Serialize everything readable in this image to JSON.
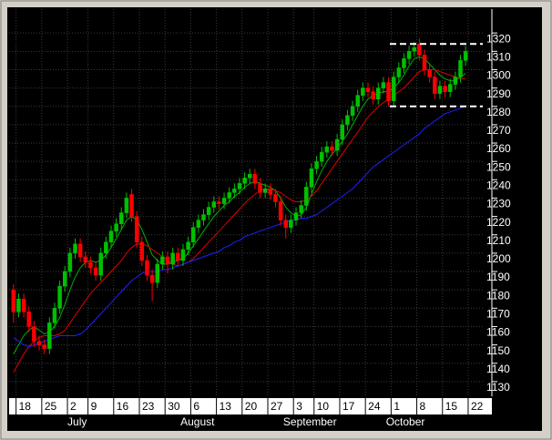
{
  "chart_data": {
    "type": "candlestick",
    "categories": [
      null,
      "18",
      null,
      null,
      null,
      null,
      "25",
      null,
      null,
      null,
      null,
      "2",
      null,
      null,
      null,
      "9",
      null,
      null,
      null,
      null,
      "16",
      null,
      null,
      null,
      null,
      "23",
      null,
      null,
      null,
      null,
      "30",
      null,
      null,
      null,
      null,
      "6",
      null,
      null,
      null,
      null,
      "13",
      null,
      null,
      null,
      null,
      "20",
      null,
      null,
      null,
      null,
      "27",
      null,
      null,
      null,
      null,
      "3",
      null,
      null,
      null,
      "10",
      null,
      null,
      null,
      null,
      "17",
      null,
      null,
      null,
      null,
      "24",
      null,
      null,
      null,
      null,
      "1",
      null,
      null,
      null,
      null,
      "8",
      null,
      null,
      null,
      null,
      "15",
      null,
      null,
      null,
      null,
      "22"
    ],
    "months": [
      null,
      null,
      null,
      null,
      null,
      null,
      null,
      null,
      null,
      null,
      null,
      "July",
      null,
      null,
      null,
      null,
      null,
      null,
      null,
      null,
      null,
      null,
      null,
      null,
      null,
      null,
      null,
      null,
      null,
      null,
      null,
      null,
      null,
      "August",
      null,
      null,
      null,
      null,
      null,
      null,
      null,
      null,
      null,
      null,
      null,
      null,
      null,
      null,
      null,
      null,
      null,
      null,
      null,
      "September",
      null,
      null,
      null,
      null,
      null,
      null,
      null,
      null,
      null,
      null,
      null,
      null,
      null,
      null,
      null,
      null,
      null,
      null,
      null,
      "October",
      null,
      null,
      null,
      null,
      null,
      null,
      null,
      null,
      null,
      null,
      null,
      null,
      null,
      null,
      null,
      null
    ],
    "open": [
      1180,
      1168,
      1175,
      1168,
      1160,
      1152,
      1150,
      1148,
      1162,
      1170,
      1182,
      1190,
      1200,
      1205,
      1198,
      1195,
      1192,
      1188,
      1200,
      1206,
      1212,
      1216,
      1222,
      1232,
      1220,
      1206,
      1196,
      1188,
      1184,
      1194,
      1198,
      1194,
      1200,
      1196,
      1202,
      1206,
      1214,
      1218,
      1221,
      1225,
      1228,
      1227,
      1230,
      1233,
      1235,
      1238,
      1241,
      1243,
      1238,
      1233,
      1235,
      1232,
      1228,
      1218,
      1214,
      1218,
      1222,
      1226,
      1236,
      1246,
      1250,
      1255,
      1258,
      1256,
      1262,
      1270,
      1275,
      1280,
      1286,
      1290,
      1288,
      1284,
      1290,
      1293,
      1283,
      1296,
      1301,
      1306,
      1310,
      1314,
      1308,
      1300,
      1296,
      1287,
      1291,
      1288,
      1292,
      1296,
      1305,
      null
    ],
    "high": [
      1183,
      1178,
      1178,
      1171,
      1163,
      1155,
      1153,
      1165,
      1173,
      1185,
      1193,
      1203,
      1208,
      1208,
      1201,
      1198,
      1195,
      1203,
      1209,
      1215,
      1219,
      1225,
      1233,
      1235,
      1223,
      1209,
      1199,
      1191,
      1197,
      1201,
      1201,
      1203,
      1203,
      1205,
      1209,
      1217,
      1221,
      1224,
      1228,
      1231,
      1231,
      1233,
      1236,
      1238,
      1241,
      1244,
      1246,
      1246,
      1241,
      1238,
      1238,
      1235,
      1231,
      1221,
      1221,
      1225,
      1229,
      1239,
      1249,
      1253,
      1258,
      1261,
      1261,
      1265,
      1273,
      1278,
      1283,
      1289,
      1293,
      1293,
      1291,
      1293,
      1296,
      1296,
      1299,
      1304,
      1309,
      1313,
      1315,
      1317,
      1311,
      1303,
      1299,
      1294,
      1294,
      1295,
      1299,
      1308,
      1313,
      null
    ],
    "low": [
      1162,
      1165,
      1165,
      1157,
      1149,
      1147,
      1145,
      1145,
      1159,
      1167,
      1179,
      1187,
      1197,
      1195,
      1192,
      1189,
      1185,
      1185,
      1197,
      1203,
      1209,
      1213,
      1219,
      1217,
      1203,
      1193,
      1185,
      1174,
      1181,
      1191,
      1189,
      1191,
      1193,
      1193,
      1199,
      1203,
      1211,
      1215,
      1218,
      1222,
      1224,
      1224,
      1227,
      1230,
      1232,
      1235,
      1238,
      1235,
      1230,
      1230,
      1229,
      1225,
      1215,
      1208,
      1211,
      1215,
      1219,
      1223,
      1233,
      1243,
      1247,
      1252,
      1253,
      1253,
      1259,
      1267,
      1272,
      1277,
      1283,
      1285,
      1281,
      1281,
      1287,
      1280,
      1280,
      1293,
      1298,
      1303,
      1307,
      1305,
      1297,
      1293,
      1284,
      1284,
      1285,
      1285,
      1289,
      1293,
      1302,
      null
    ],
    "close": [
      1168,
      1175,
      1168,
      1160,
      1152,
      1150,
      1148,
      1162,
      1170,
      1182,
      1190,
      1200,
      1205,
      1198,
      1195,
      1192,
      1188,
      1200,
      1206,
      1212,
      1216,
      1222,
      1230,
      1220,
      1206,
      1196,
      1188,
      1184,
      1194,
      1198,
      1194,
      1200,
      1196,
      1202,
      1206,
      1214,
      1218,
      1221,
      1225,
      1228,
      1227,
      1230,
      1233,
      1235,
      1238,
      1241,
      1243,
      1238,
      1233,
      1235,
      1232,
      1228,
      1218,
      1214,
      1218,
      1222,
      1226,
      1236,
      1246,
      1250,
      1255,
      1258,
      1256,
      1262,
      1270,
      1275,
      1280,
      1286,
      1290,
      1288,
      1284,
      1290,
      1293,
      1283,
      1296,
      1301,
      1306,
      1310,
      1312,
      1308,
      1300,
      1296,
      1287,
      1291,
      1288,
      1292,
      1296,
      1305,
      1310,
      null
    ],
    "up_color": "#00c000",
    "down_color": "#ff0000",
    "series": [
      {
        "color": "#00b000",
        "values": [
          1145,
          1150,
          1155,
          1158,
          1160,
          1158,
          1156,
          1157,
          1160,
          1165,
          1172,
          1180,
          1187,
          1192,
          1195,
          1196,
          1195,
          1196,
          1199,
          1203,
          1208,
          1213,
          1218,
          1220,
          1218,
          1213,
          1206,
          1199,
          1196,
          1194,
          1194,
          1195,
          1196,
          1197,
          1200,
          1204,
          1208,
          1212,
          1216,
          1220,
          1223,
          1226,
          1228,
          1231,
          1233,
          1236,
          1238,
          1239,
          1238,
          1237,
          1236,
          1234,
          1230,
          1225,
          1222,
          1220,
          1221,
          1225,
          1232,
          1239,
          1245,
          1250,
          1254,
          1257,
          1261,
          1265,
          1270,
          1275,
          1280,
          1284,
          1286,
          1287,
          1288,
          1288,
          1290,
          1293,
          1297,
          1302,
          1306,
          1307,
          1306,
          1303,
          1300,
          1297,
          1295,
          1294,
          1294,
          1296,
          1298,
          null
        ]
      },
      {
        "color": "#e00000",
        "values": [
          1135,
          1140,
          1145,
          1149,
          1152,
          1154,
          1155,
          1155,
          1155,
          1156,
          1158,
          1162,
          1166,
          1170,
          1174,
          1178,
          1181,
          1184,
          1187,
          1190,
          1193,
          1196,
          1200,
          1203,
          1205,
          1205,
          1204,
          1202,
          1200,
          1198,
          1196,
          1194,
          1193,
          1194,
          1195,
          1197,
          1200,
          1203,
          1206,
          1209,
          1212,
          1215,
          1218,
          1221,
          1224,
          1227,
          1230,
          1232,
          1234,
          1235,
          1235,
          1234,
          1233,
          1231,
          1229,
          1228,
          1228,
          1229,
          1231,
          1234,
          1238,
          1242,
          1246,
          1250,
          1254,
          1258,
          1262,
          1266,
          1270,
          1274,
          1277,
          1280,
          1282,
          1284,
          1286,
          1288,
          1290,
          1293,
          1296,
          1299,
          1300,
          1300,
          1300,
          1299,
          1298,
          1297,
          1296,
          1295,
          1295,
          null
        ]
      },
      {
        "color": "#2020ff",
        "values": [
          1154,
          1152,
          1150,
          1149,
          1150,
          1151,
          1152,
          1153,
          1154,
          1155,
          1155,
          1155,
          1155,
          1156,
          1158,
          1161,
          1164,
          1167,
          1170,
          1173,
          1176,
          1179,
          1182,
          1185,
          1187,
          1189,
          1190,
          1190,
          1190,
          1191,
          1191,
          1192,
          1193,
          1194,
          1195,
          1196,
          1197,
          1198,
          1199,
          1200,
          1201,
          1203,
          1204,
          1206,
          1207,
          1209,
          1210,
          1211,
          1212,
          1213,
          1214,
          1215,
          1216,
          1217,
          1218,
          1218,
          1219,
          1219,
          1220,
          1221,
          1223,
          1225,
          1227,
          1229,
          1231,
          1233,
          1235,
          1238,
          1241,
          1244,
          1247,
          1249,
          1251,
          1253,
          1255,
          1257,
          1259,
          1261,
          1263,
          1265,
          1268,
          1270,
          1272,
          1274,
          1276,
          1277,
          1278,
          1279,
          1280,
          null
        ]
      }
    ],
    "hlines": [
      1314,
      1280
    ],
    "ylim": [
      1122,
      1333
    ],
    "yticks": [
      1130,
      1140,
      1150,
      1160,
      1170,
      1180,
      1190,
      1200,
      1210,
      1220,
      1230,
      1240,
      1250,
      1260,
      1270,
      1280,
      1290,
      1300,
      1310,
      1320
    ],
    "grid": true
  }
}
